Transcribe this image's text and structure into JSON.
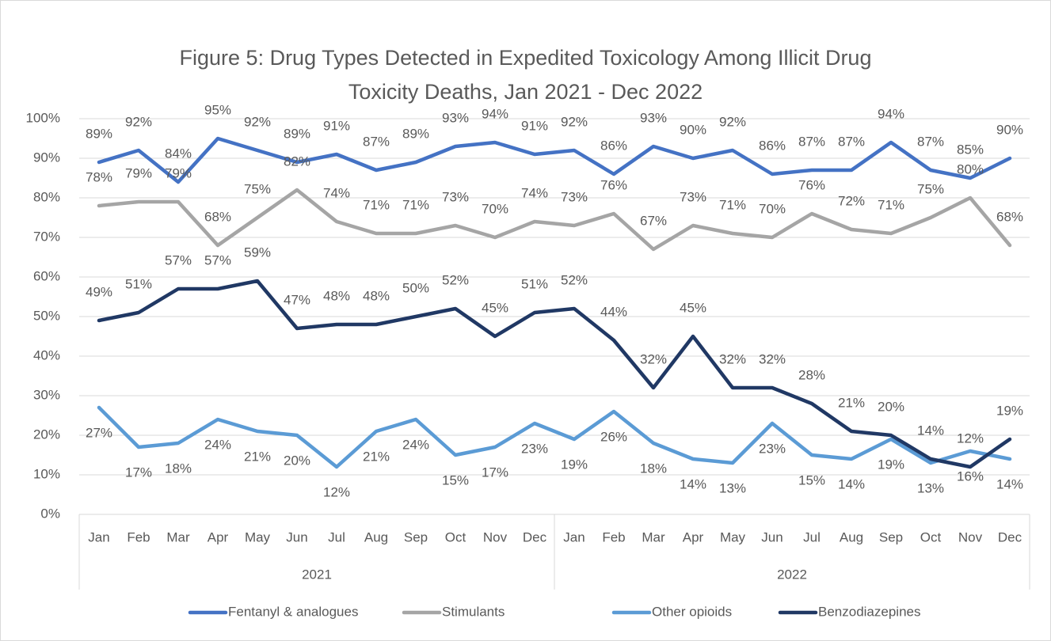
{
  "chart_data": {
    "type": "line",
    "title": "Figure 5: Drug Types Detected in Expedited Toxicology Among Illicit Drug Toxicity Deaths, Jan 2021 - Dec 2022",
    "groups": [
      {
        "label": "2021",
        "categories": [
          "Jan",
          "Feb",
          "Mar",
          "Apr",
          "May",
          "Jun",
          "Jul",
          "Aug",
          "Sep",
          "Oct",
          "Nov",
          "Dec"
        ]
      },
      {
        "label": "2022",
        "categories": [
          "Jan",
          "Feb",
          "Mar",
          "Apr",
          "May",
          "Jun",
          "Jul",
          "Aug",
          "Sep",
          "Oct",
          "Nov",
          "Dec"
        ]
      }
    ],
    "ylim": [
      0,
      100
    ],
    "yticks": [
      {
        "value": 0,
        "label": "0%"
      },
      {
        "value": 10,
        "label": "10%"
      },
      {
        "value": 20,
        "label": "20%"
      },
      {
        "value": 30,
        "label": "30%"
      },
      {
        "value": 40,
        "label": "40%"
      },
      {
        "value": 50,
        "label": "50%"
      },
      {
        "value": 60,
        "label": "60%"
      },
      {
        "value": 70,
        "label": "70%"
      },
      {
        "value": 80,
        "label": "80%"
      },
      {
        "value": 90,
        "label": "90%"
      },
      {
        "value": 100,
        "label": "100%"
      }
    ],
    "grid": true,
    "legend": "bottom",
    "series": [
      {
        "name": "Fentanyl & analogues",
        "color": "#4472c4",
        "label_position": "above",
        "values": [
          89,
          92,
          84,
          95,
          92,
          89,
          91,
          87,
          89,
          93,
          94,
          91,
          92,
          86,
          93,
          90,
          92,
          86,
          87,
          87,
          94,
          87,
          85,
          90
        ],
        "value_labels": [
          "89%",
          "92%",
          "84%",
          "95%",
          "92%",
          "89%",
          "91%",
          "87%",
          "89%",
          "93%",
          "94%",
          "91%",
          "92%",
          "86%",
          "93%",
          "90%",
          "92%",
          "86%",
          "87%",
          "87%",
          "94%",
          "87%",
          "85%",
          "90%"
        ]
      },
      {
        "name": "Stimulants",
        "color": "#a5a5a5",
        "label_position": "above",
        "values": [
          78,
          79,
          79,
          68,
          75,
          82,
          74,
          71,
          71,
          73,
          70,
          74,
          73,
          76,
          67,
          73,
          71,
          70,
          76,
          72,
          71,
          75,
          80,
          68
        ],
        "value_labels": [
          "78%",
          "79%",
          "79%",
          "68%",
          "75%",
          "82%",
          "74%",
          "71%",
          "71%",
          "73%",
          "70%",
          "74%",
          "73%",
          "76%",
          "67%",
          "73%",
          "71%",
          "70%",
          "76%",
          "72%",
          "71%",
          "75%",
          "80%",
          "68%"
        ]
      },
      {
        "name": "Other opioids",
        "color": "#5b9bd5",
        "label_position": "below",
        "values": [
          27,
          17,
          18,
          24,
          21,
          20,
          12,
          21,
          24,
          15,
          17,
          23,
          19,
          26,
          18,
          14,
          13,
          23,
          15,
          14,
          19,
          13,
          16,
          14
        ],
        "value_labels": [
          "27%",
          "17%",
          "18%",
          "24%",
          "21%",
          "20%",
          "12%",
          "21%",
          "24%",
          "15%",
          "17%",
          "23%",
          "19%",
          "26%",
          "18%",
          "14%",
          "13%",
          "23%",
          "15%",
          "14%",
          "19%",
          "13%",
          "16%",
          "14%"
        ]
      },
      {
        "name": "Benzodiazepines",
        "color": "#203864",
        "label_position": "above",
        "values": [
          49,
          51,
          57,
          57,
          59,
          47,
          48,
          48,
          50,
          52,
          45,
          51,
          52,
          44,
          32,
          45,
          32,
          32,
          28,
          21,
          20,
          14,
          12,
          19
        ],
        "value_labels": [
          "49%",
          "51%",
          "57%",
          "57%",
          "59%",
          "47%",
          "48%",
          "48%",
          "50%",
          "52%",
          "45%",
          "51%",
          "52%",
          "44%",
          "32%",
          "45%",
          "32%",
          "32%",
          "28%",
          "21%",
          "20%",
          "14%",
          "12%",
          "19%"
        ]
      }
    ]
  }
}
